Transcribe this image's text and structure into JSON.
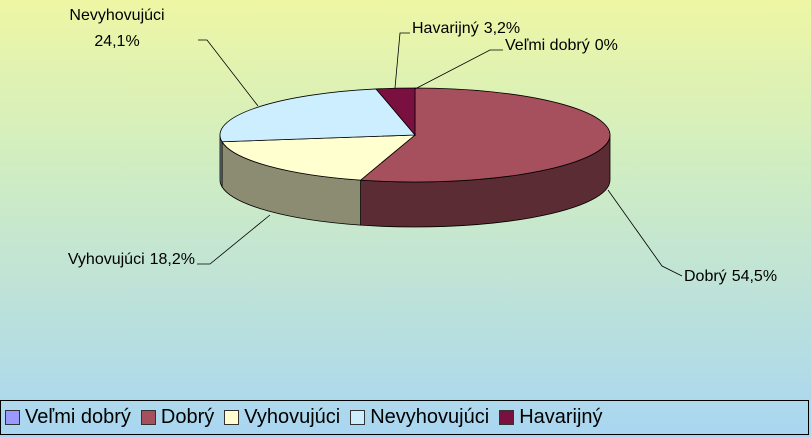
{
  "chart_data": {
    "type": "pie3d",
    "categories": [
      "Veľmi dobrý",
      "Dobrý",
      "Vyhovujúci",
      "Nevyhovujúci",
      "Havarijný"
    ],
    "values": [
      0,
      54.5,
      18.2,
      24.1,
      3.2
    ],
    "value_labels": [
      "0%",
      "54,5%",
      "18,2%",
      "24,1%",
      "3,2%"
    ],
    "colors": [
      "#9999ff",
      "#a5505c",
      "#ffffd0",
      "#cceeff",
      "#7a1040"
    ],
    "legend": "bottom"
  }
}
